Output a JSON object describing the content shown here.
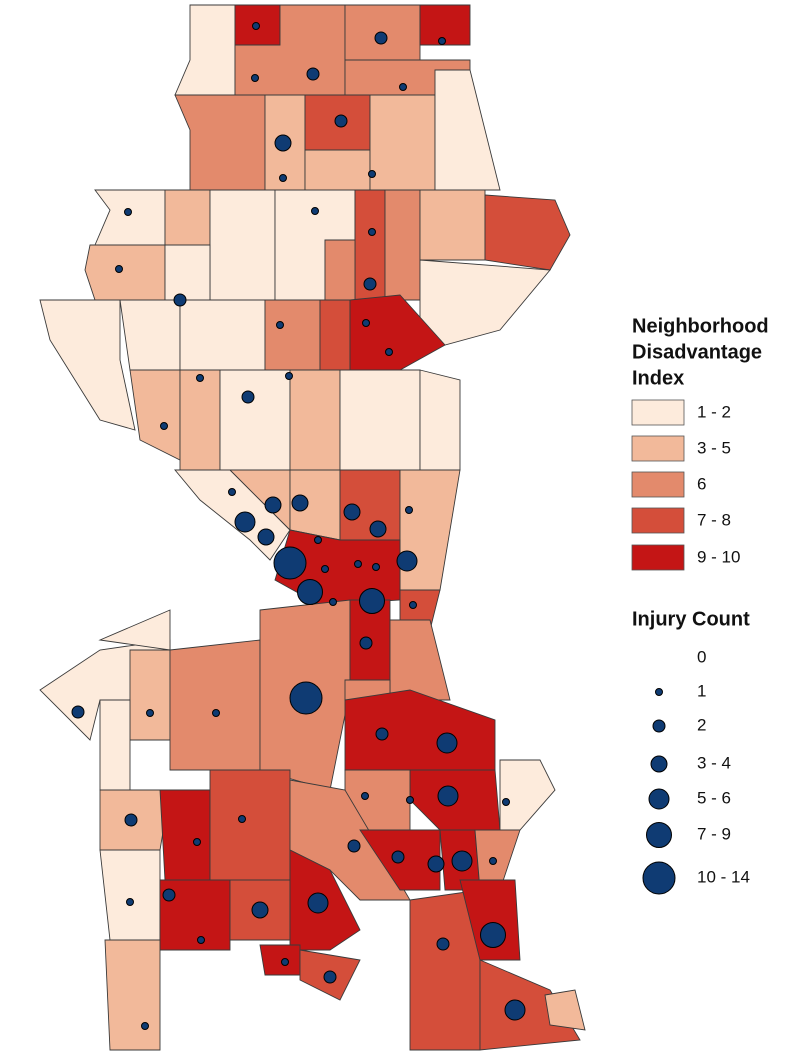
{
  "legend_disadvantage": {
    "title_lines": [
      "Neighborhood",
      "Disadvantage",
      "Index"
    ],
    "classes": [
      {
        "label": "1 - 2",
        "color": "#fdebdc"
      },
      {
        "label": "3 - 5",
        "color": "#f2b99a"
      },
      {
        "label": "6",
        "color": "#e38a6c"
      },
      {
        "label": "7 - 8",
        "color": "#d44e3a"
      },
      {
        "label": "9 - 10",
        "color": "#c41515"
      }
    ]
  },
  "legend_injury": {
    "title": "Injury Count",
    "classes": [
      "0",
      "1",
      "2",
      "3 - 4",
      "5 - 6",
      "7 - 9",
      "10 - 14"
    ],
    "color": "#0f3b73"
  }
}
